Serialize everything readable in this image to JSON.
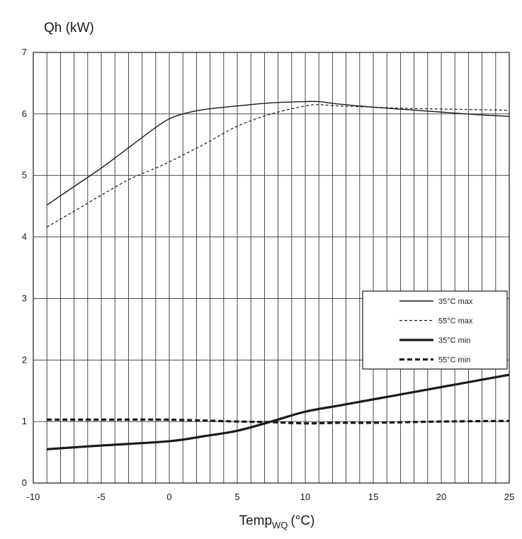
{
  "chart_data": {
    "type": "line",
    "title": "Qh (kW)",
    "xlabel_main": "Temp",
    "xlabel_sub": "WQ",
    "xlabel_unit": "(°C)",
    "xlim": [
      -10,
      25
    ],
    "ylim": [
      0,
      7
    ],
    "x_ticks": [
      "-10",
      "-5",
      "0",
      "5",
      "10",
      "15",
      "20",
      "25"
    ],
    "y_ticks": [
      "0",
      "1",
      "2",
      "3",
      "4",
      "5",
      "6",
      "7"
    ],
    "grid": true,
    "legend_position": "right-middle",
    "series": [
      {
        "name": "35°C max",
        "style": "thin-solid",
        "color": "#1a1a1a",
        "points": [
          [
            -9,
            4.52
          ],
          [
            -7,
            4.82
          ],
          [
            -5,
            5.12
          ],
          [
            -3,
            5.45
          ],
          [
            -1,
            5.78
          ],
          [
            0,
            5.92
          ],
          [
            1,
            6.0
          ],
          [
            2.5,
            6.07
          ],
          [
            5,
            6.13
          ],
          [
            7.5,
            6.18
          ],
          [
            10,
            6.2
          ],
          [
            11,
            6.2
          ],
          [
            12.5,
            6.16
          ],
          [
            15,
            6.11
          ],
          [
            17.5,
            6.07
          ],
          [
            20,
            6.03
          ],
          [
            22.5,
            5.99
          ],
          [
            25,
            5.96
          ]
        ]
      },
      {
        "name": "55°C max",
        "style": "thin-dashed",
        "color": "#1a1a1a",
        "points": [
          [
            -9,
            4.16
          ],
          [
            -7,
            4.42
          ],
          [
            -5,
            4.68
          ],
          [
            -3,
            4.93
          ],
          [
            -1,
            5.12
          ],
          [
            0,
            5.22
          ],
          [
            2.5,
            5.5
          ],
          [
            5,
            5.8
          ],
          [
            7.5,
            6.0
          ],
          [
            10,
            6.13
          ],
          [
            11,
            6.15
          ],
          [
            12.5,
            6.13
          ],
          [
            15,
            6.11
          ],
          [
            17.5,
            6.09
          ],
          [
            20,
            6.08
          ],
          [
            22.5,
            6.07
          ],
          [
            25,
            6.06
          ]
        ]
      },
      {
        "name": "35°C min",
        "style": "thick-solid",
        "color": "#1a1a1a",
        "points": [
          [
            -9,
            0.55
          ],
          [
            -5,
            0.61
          ],
          [
            0,
            0.68
          ],
          [
            2.5,
            0.76
          ],
          [
            5,
            0.85
          ],
          [
            7.5,
            1.0
          ],
          [
            10,
            1.16
          ],
          [
            12.5,
            1.26
          ],
          [
            15,
            1.36
          ],
          [
            17.5,
            1.46
          ],
          [
            20,
            1.56
          ],
          [
            22.5,
            1.66
          ],
          [
            25,
            1.76
          ]
        ]
      },
      {
        "name": "55°C min",
        "style": "thick-dashed",
        "color": "#1a1a1a",
        "points": [
          [
            -9,
            1.03
          ],
          [
            -5,
            1.03
          ],
          [
            0,
            1.03
          ],
          [
            5,
            1.0
          ],
          [
            7.5,
            0.99
          ],
          [
            10,
            0.97
          ],
          [
            12.5,
            0.98
          ],
          [
            15,
            0.98
          ],
          [
            20,
            1.0
          ],
          [
            25,
            1.01
          ]
        ]
      }
    ]
  }
}
